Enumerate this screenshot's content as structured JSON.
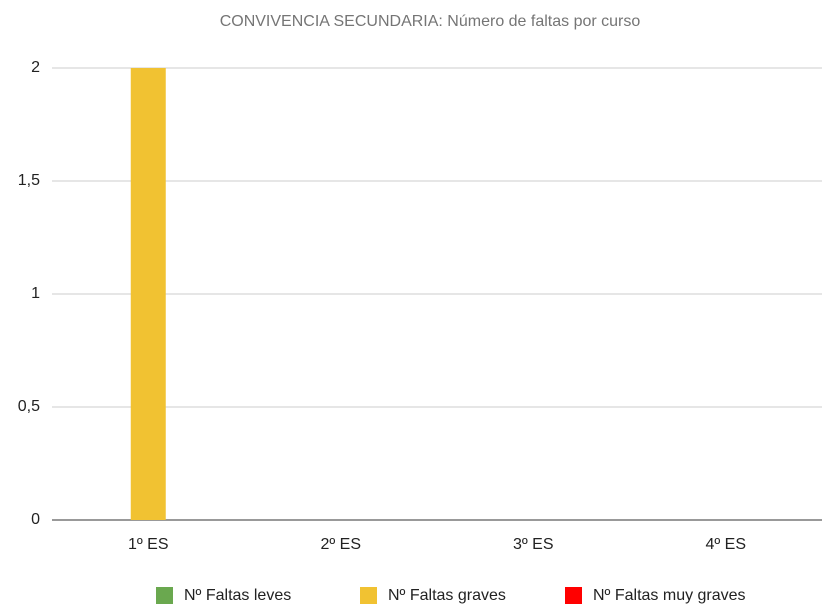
{
  "chart_data": {
    "type": "bar",
    "title": "CONVIVENCIA SECUNDARIA: Número de faltas por curso",
    "categories": [
      "1º ES",
      "2º ES",
      "3º ES",
      "4º ES"
    ],
    "series": [
      {
        "name": "Nº Faltas leves",
        "color": "#6aa84f",
        "values": [
          0,
          0,
          0,
          0
        ]
      },
      {
        "name": "Nº Faltas graves",
        "color": "#f1c232",
        "values": [
          2,
          0,
          0,
          0
        ]
      },
      {
        "name": "Nº Faltas muy graves",
        "color": "#ff0000",
        "values": [
          0,
          0,
          0,
          0
        ]
      }
    ],
    "ylim": [
      0,
      2
    ],
    "yticks": [
      0,
      {
        "value": 0.5,
        "label": "0,5"
      },
      1,
      {
        "value": 1.5,
        "label": "1,5"
      },
      2
    ],
    "grid": true,
    "legend": "bottom"
  }
}
